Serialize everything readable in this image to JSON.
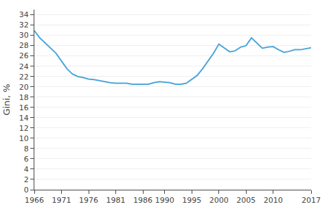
{
  "chart_data": {
    "type": "line",
    "x": [
      1966,
      1967,
      1968,
      1969,
      1970,
      1971,
      1972,
      1973,
      1974,
      1975,
      1976,
      1977,
      1978,
      1979,
      1980,
      1981,
      1982,
      1983,
      1984,
      1985,
      1986,
      1987,
      1988,
      1989,
      1990,
      1991,
      1992,
      1993,
      1994,
      1995,
      1996,
      1997,
      1998,
      1999,
      2000,
      2001,
      2002,
      2003,
      2004,
      2005,
      2006,
      2007,
      2008,
      2009,
      2010,
      2011,
      2012,
      2013,
      2014,
      2015,
      2016,
      2017
    ],
    "values": [
      30.9,
      29.5,
      28.5,
      27.5,
      26.5,
      25.0,
      23.5,
      22.5,
      22.0,
      21.8,
      21.5,
      21.4,
      21.2,
      21.0,
      20.8,
      20.7,
      20.7,
      20.7,
      20.5,
      20.5,
      20.4,
      20.5,
      20.8,
      21.0,
      20.9,
      20.8,
      20.5,
      20.5,
      20.7,
      21.4,
      22.2,
      23.5,
      25.0,
      26.5,
      28.3,
      27.5,
      26.8,
      27.0,
      27.7,
      28.0,
      29.5,
      28.5,
      27.5,
      27.7,
      27.8,
      27.2,
      26.7,
      26.9,
      27.2,
      27.2,
      27.4,
      27.6
    ],
    "color": "#4da6d9",
    "ylabel": "Gini, %",
    "xlim": [
      1966,
      2017
    ],
    "ylim": [
      0,
      35
    ],
    "xticks": [
      1966,
      1971,
      1976,
      1981,
      1986,
      1990,
      1995,
      2000,
      2005,
      2010,
      2017
    ],
    "yticks": [
      0,
      2,
      4,
      6,
      8,
      10,
      12,
      14,
      16,
      18,
      20,
      22,
      24,
      26,
      28,
      30,
      32,
      34
    ],
    "grid": "y"
  }
}
